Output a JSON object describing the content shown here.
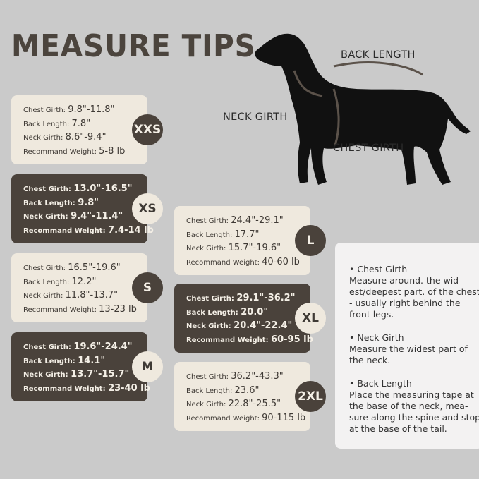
{
  "title": "MEASURE TIPS",
  "diagram_labels": {
    "back": "BACK LENGTH",
    "neck": "NECK GIRTH",
    "chest": "CHEST GIRTH"
  },
  "field_labels": {
    "chest": "Chest Girth:",
    "back": "Back Length:",
    "neck": "Neck Girth:",
    "weight": "Recommand Weight:"
  },
  "sizes": [
    {
      "size": "XXS",
      "chest": "9.8\"-11.8\"",
      "back": "7.8\"",
      "neck": "8.6\"-9.4\"",
      "weight": "5-8 lb"
    },
    {
      "size": "XS",
      "chest": "13.0\"-16.5\"",
      "back": "9.8\"",
      "neck": "9.4\"-11.4\"",
      "weight": "7.4-14 lb"
    },
    {
      "size": "S",
      "chest": "16.5\"-19.6\"",
      "back": "12.2\"",
      "neck": "11.8\"-13.7\"",
      "weight": "13-23 lb"
    },
    {
      "size": "M",
      "chest": "19.6\"-24.4\"",
      "back": "14.1\"",
      "neck": "13.7\"-15.7\"",
      "weight": "23-40 lb"
    },
    {
      "size": "L",
      "chest": "24.4\"-29.1\"",
      "back": "17.7\"",
      "neck": "15.7\"-19.6\"",
      "weight": "40-60 lb"
    },
    {
      "size": "XL",
      "chest": "29.1\"-36.2\"",
      "back": "20.0\"",
      "neck": "20.4\"-22.4\"",
      "weight": "60-95 lb"
    },
    {
      "size": "2XL",
      "chest": "36.2\"-43.3\"",
      "back": "23.6\"",
      "neck": "22.8\"-25.5\"",
      "weight": "90-115 lb"
    }
  ],
  "tips": [
    {
      "heading": "• Chest Girth",
      "text": "Measure around. the wid-est/deepest part. of the chest - usually right behind the front legs."
    },
    {
      "heading": "• Neck Girth",
      "text": "Measure the widest part of the neck."
    },
    {
      "heading": "• Back Length",
      "text": "Place the measuring tape at the base of the neck, mea-sure along the spine and stop at the base of the tail."
    }
  ],
  "colors": {
    "background": "#cacaca",
    "dark": "#4a423b",
    "light": "#efe9de"
  }
}
